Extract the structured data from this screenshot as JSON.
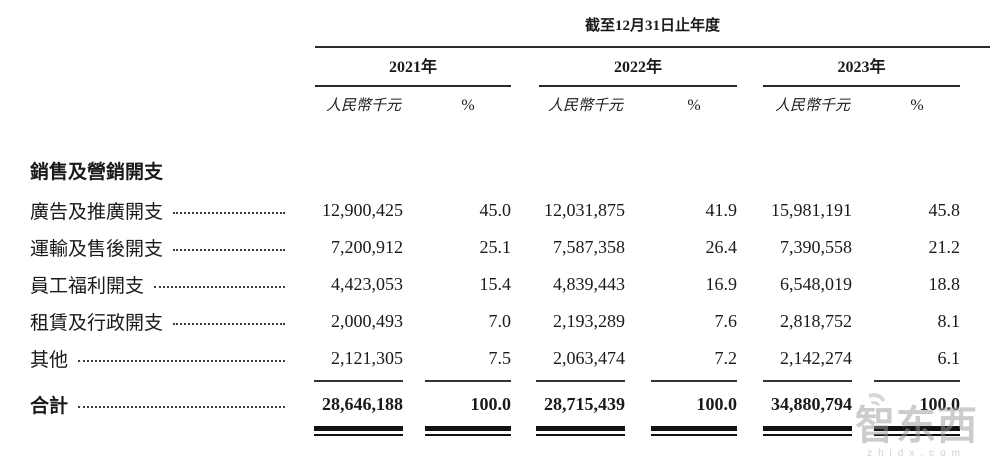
{
  "table": {
    "period_header": "截至12月31日止年度",
    "unit_label": "人民幣千元",
    "pct_label": "%",
    "year_groups": [
      {
        "year": "2021年"
      },
      {
        "year": "2022年"
      },
      {
        "year": "2023年"
      }
    ],
    "section_header": "銷售及營銷開支",
    "rows": [
      {
        "label": "廣告及推廣開支",
        "values": [
          "12,900,425",
          "45.0",
          "12,031,875",
          "41.9",
          "15,981,191",
          "45.8"
        ]
      },
      {
        "label": "運輸及售後開支",
        "values": [
          "7,200,912",
          "25.1",
          "7,587,358",
          "26.4",
          "7,390,558",
          "21.2"
        ]
      },
      {
        "label": "員工福利開支",
        "values": [
          "4,423,053",
          "15.4",
          "4,839,443",
          "16.9",
          "6,548,019",
          "18.8"
        ]
      },
      {
        "label": "租賃及行政開支",
        "values": [
          "2,000,493",
          "7.0",
          "2,193,289",
          "7.6",
          "2,818,752",
          "8.1"
        ]
      },
      {
        "label": "其他",
        "values": [
          "2,121,305",
          "7.5",
          "2,063,474",
          "7.2",
          "2,142,274",
          "6.1"
        ]
      }
    ],
    "total_row": {
      "label": "合計",
      "values": [
        "28,646,188",
        "100.0",
        "28,715,439",
        "100.0",
        "34,880,794",
        "100.0"
      ]
    }
  },
  "watermark": {
    "logo_text": "智东西",
    "domain_text": "zhidx.com"
  }
}
